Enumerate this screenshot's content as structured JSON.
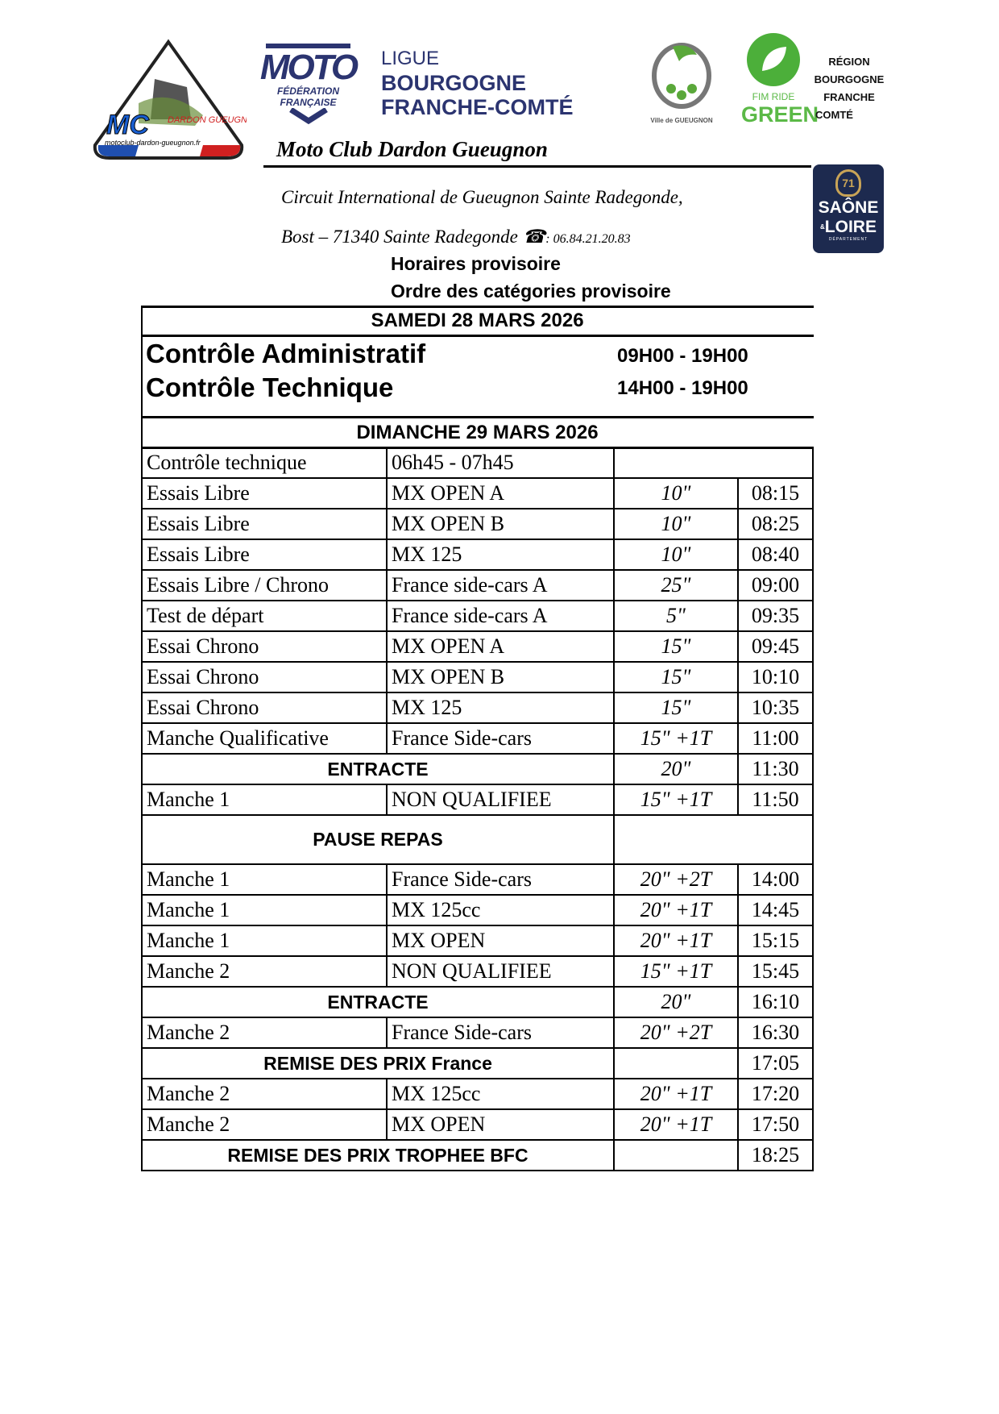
{
  "logos": {
    "club": {
      "text1": "MC",
      "text2": "DARDON GUEUGNON",
      "text3": "motoclub-dardon-gueugnon.fr"
    },
    "ffm": {
      "word": "MOTO",
      "sub1": "FÉDÉRATION",
      "sub2": "FRANÇAISE"
    },
    "ligue": {
      "line1": "LIGUE",
      "line2": "BOURGOGNE",
      "line3": "FRANCHE-COMTÉ"
    },
    "ville": {
      "text": "Ville de GUEUGNON"
    },
    "green": {
      "line1": "FIM RIDE",
      "line2": "GREEN"
    },
    "region": {
      "line1": "RÉGION",
      "line2": "BOURGOGNE",
      "line3": "FRANCHE",
      "line4": "COMTÉ"
    },
    "departement": {
      "num": "71",
      "line1": "SAÔNE",
      "line2": "LOIRE",
      "amp": "&",
      "line3": "DÉPARTEMENT",
      "color": "#1d2a4f"
    }
  },
  "header": {
    "club_name": "Moto Club Dardon Gueugnon",
    "address1": "Circuit International de Gueugnon Sainte Radegonde,",
    "address2": "Bost – 71340 Sainte Radegonde",
    "phone_icon": "telephone-icon",
    "phone": ": 06.84.21.20.83",
    "title1": "Horaires provisoire",
    "title2": "Ordre des catégories provisoire"
  },
  "saturday": {
    "title": "SAMEDI 28 MARS 2026",
    "items": [
      {
        "label": "Contrôle Administratif",
        "time": "09H00 - 19H00"
      },
      {
        "label": "Contrôle Technique",
        "time": "14H00 - 19H00"
      }
    ]
  },
  "sunday": {
    "title": "DIMANCHE 29 MARS 2026",
    "rows": [
      {
        "type": "first",
        "session": "Contrôle technique",
        "category": "06h45 - 07h45"
      },
      {
        "session": "Essais Libre",
        "category": "MX OPEN A",
        "duration": "10\"",
        "start": "08:15"
      },
      {
        "session": "Essais Libre",
        "category": "MX OPEN B",
        "duration": "10\"",
        "start": "08:25"
      },
      {
        "session": "Essais Libre",
        "category": "MX 125",
        "duration": "10\"",
        "start": "08:40"
      },
      {
        "session": "Essais Libre / Chrono",
        "category": "France side-cars A",
        "duration": "25\"",
        "start": "09:00"
      },
      {
        "session": "Test de départ",
        "category": "France side-cars A",
        "duration": "5\"",
        "start": "09:35"
      },
      {
        "session": "Essai Chrono",
        "category": "MX OPEN A",
        "duration": "15\"",
        "start": "09:45"
      },
      {
        "session": "Essai Chrono",
        "category": "MX OPEN B",
        "duration": "15\"",
        "start": "10:10"
      },
      {
        "session": "Essai Chrono",
        "category": "MX 125",
        "duration": "15\"",
        "start": "10:35"
      },
      {
        "session": "Manche Qualificative",
        "category": "France Side-cars",
        "duration": "15\" +1T",
        "start": "11:00"
      },
      {
        "type": "span",
        "session": "ENTRACTE",
        "duration": "20\"",
        "start": "11:30"
      },
      {
        "session": "Manche 1",
        "category": "NON QUALIFIEE",
        "duration": "15\" +1T",
        "start": "11:50"
      },
      {
        "type": "pause",
        "session": "PAUSE REPAS"
      },
      {
        "session": "Manche 1",
        "category": "France Side-cars",
        "duration": "20\" +2T",
        "start": "14:00"
      },
      {
        "session": "Manche 1",
        "category": "MX 125cc",
        "duration": "20\" +1T",
        "start": "14:45"
      },
      {
        "session": "Manche 1",
        "category": "MX OPEN",
        "duration": "20\" +1T",
        "start": "15:15"
      },
      {
        "session": "Manche 2",
        "category": "NON QUALIFIEE",
        "duration": "15\" +1T",
        "start": "15:45"
      },
      {
        "type": "span",
        "session": "ENTRACTE",
        "duration": "20\"",
        "start": "16:10"
      },
      {
        "session": "Manche 2",
        "category": "France Side-cars",
        "duration": "20\" +2T",
        "start": "16:30"
      },
      {
        "type": "span",
        "session": "REMISE DES PRIX France",
        "duration": "",
        "start": "17:05"
      },
      {
        "session": "Manche 2",
        "category": "MX 125cc",
        "duration": "20\" +1T",
        "start": "17:20"
      },
      {
        "session": "Manche 2",
        "category": "MX OPEN",
        "duration": "20\" +1T",
        "start": "17:50"
      },
      {
        "type": "span",
        "session": "REMISE DES PRIX TROPHEE BFC",
        "duration": "",
        "start": "18:25"
      }
    ]
  }
}
